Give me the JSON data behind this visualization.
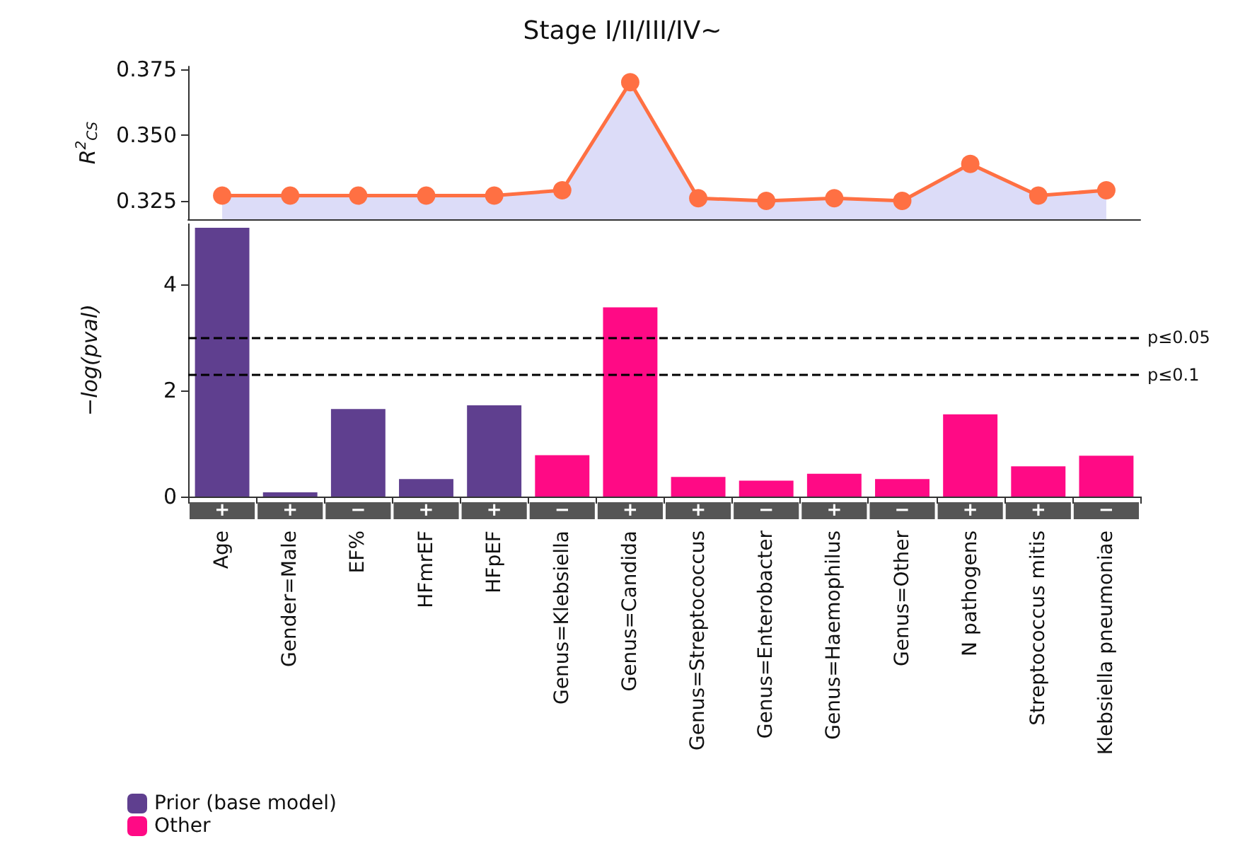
{
  "chart_data": [
    {
      "type": "area",
      "title": "Stage I/II/III/IV~",
      "ylabel": "R$^{2}$$_{CS}$",
      "categories": [
        null,
        null,
        null,
        null,
        null,
        null,
        null,
        null,
        null,
        null,
        null,
        null,
        null,
        null
      ],
      "series": [
        {
          "color": "#ff7043",
          "values": [
            0.327,
            0.327,
            0.327,
            0.327,
            0.327,
            0.329,
            0.37,
            0.326,
            0.325,
            0.326,
            0.325,
            0.339,
            0.327,
            0.329
          ]
        }
      ],
      "ylim": [
        0.318,
        0.376
      ],
      "yticks": [
        {
          "value": 0.325,
          "label": "0.325"
        },
        {
          "value": 0.35,
          "label": "0.350"
        },
        {
          "value": 0.375,
          "label": "0.375"
        }
      ],
      "tick_labels": "y",
      "marker": "circle",
      "grid": false,
      "legend": false
    },
    {
      "type": "bar",
      "ylabel": "−log(pval)",
      "categories": [
        "Age",
        "Gender=Male",
        "EF%",
        "HFmrEF",
        "HFpEF",
        "Genus=Klebsiella",
        "Genus=Candida",
        "Genus=Streptococcus",
        "Genus=Enterobacter",
        "Genus=Haemophilus",
        "Genus=Other",
        "N pathogens",
        "Streptococcus mitis",
        "Klebsiella pneumoniae"
      ],
      "series": [
        {
          "name": "Prior (base model)",
          "color": "#5f3f8f",
          "values": [
            5.07,
            0.08,
            1.65,
            0.33,
            1.72,
            null,
            null,
            null,
            null,
            null,
            null,
            null,
            null,
            null
          ]
        },
        {
          "name": "Other",
          "color": "#ff0a85",
          "values": [
            null,
            null,
            null,
            null,
            null,
            0.78,
            3.57,
            0.37,
            0.3,
            0.43,
            0.33,
            1.55,
            0.57,
            0.77
          ]
        }
      ],
      "ylim": [
        0,
        5.15
      ],
      "yticks": [
        0,
        2,
        4
      ],
      "grid": false,
      "legend": "bottom left",
      "ref_lines": [
        {
          "axis": "y",
          "value": 3,
          "label": "p≤0.05",
          "line_style": "dashed",
          "color": "#000000"
        },
        {
          "axis": "y",
          "value": 2.3,
          "label": "p≤0.1",
          "line_style": "dashed",
          "color": "#000000"
        }
      ],
      "annotations": [
        "+",
        "+",
        "−",
        "+",
        "+",
        "−",
        "+",
        "+",
        "−",
        "+",
        "−",
        "+",
        "+",
        "−"
      ]
    }
  ]
}
